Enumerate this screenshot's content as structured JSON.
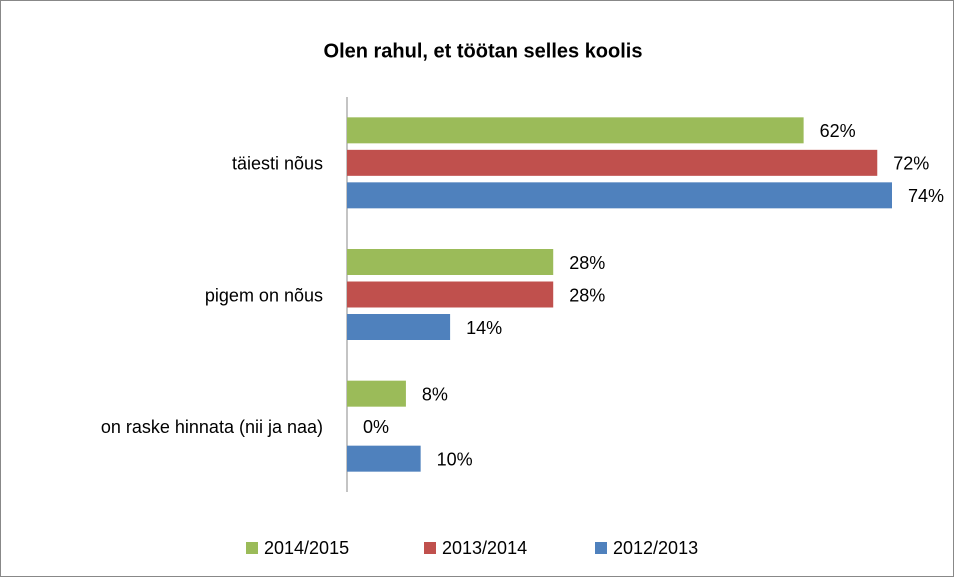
{
  "chart_data": {
    "type": "hbar",
    "title": "Olen rahul, et töötan selles koolis",
    "categories": [
      "täiesti nõus",
      "pigem on nõus",
      "on raske hinnata (nii ja naa)"
    ],
    "series": [
      {
        "name": "2014/2015",
        "color": "#9bbb59",
        "values": [
          62,
          28,
          8
        ],
        "value_labels": [
          "62%",
          "28%",
          "8%"
        ]
      },
      {
        "name": "2013/2014",
        "color": "#c0504d",
        "values": [
          72,
          28,
          0
        ],
        "value_labels": [
          "72%",
          "28%",
          "0%"
        ]
      },
      {
        "name": "2012/2013",
        "color": "#4f81bd",
        "values": [
          74,
          14,
          10
        ],
        "value_labels": [
          "74%",
          "14%",
          "10%"
        ]
      }
    ],
    "legend": "bottom"
  }
}
